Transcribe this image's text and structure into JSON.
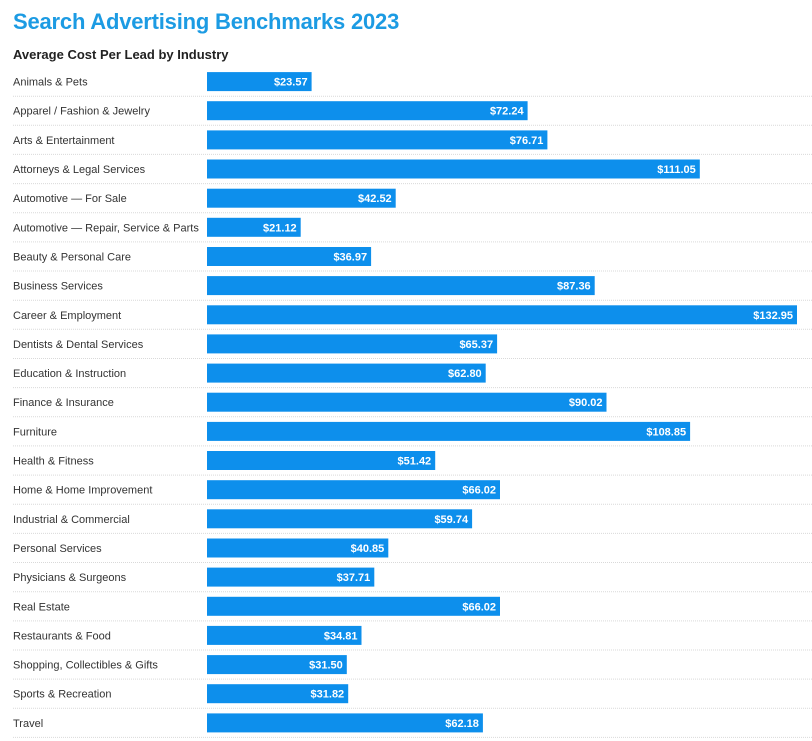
{
  "title": "Search Advertising Benchmarks 2023",
  "subtitle": "Average Cost Per Lead by Industry",
  "colors": {
    "bar": "#0d8fec",
    "title": "#1c9be3",
    "divider": "#d9d9d9"
  },
  "chart_data": {
    "type": "bar",
    "orientation": "horizontal",
    "title": "Search Advertising Benchmarks 2023",
    "subtitle": "Average Cost Per Lead by Industry",
    "xlabel": "",
    "ylabel": "",
    "categories": [
      "Animals & Pets",
      "Apparel / Fashion & Jewelry",
      "Arts & Entertainment",
      "Attorneys & Legal Services",
      "Automotive — For Sale",
      "Automotive — Repair, Service & Parts",
      "Beauty & Personal Care",
      "Business Services",
      "Career & Employment",
      "Dentists & Dental Services",
      "Education & Instruction",
      "Finance & Insurance",
      "Furniture",
      "Health & Fitness",
      "Home & Home Improvement",
      "Industrial & Commercial",
      "Personal Services",
      "Physicians & Surgeons",
      "Real Estate",
      "Restaurants & Food",
      "Shopping, Collectibles & Gifts",
      "Sports & Recreation",
      "Travel"
    ],
    "values": [
      23.57,
      72.24,
      76.71,
      111.05,
      42.52,
      21.12,
      36.97,
      87.36,
      132.95,
      65.37,
      62.8,
      90.02,
      108.85,
      51.42,
      66.02,
      59.74,
      40.85,
      37.71,
      66.02,
      34.81,
      31.5,
      31.82,
      62.18
    ],
    "value_labels": [
      "$23.57",
      "$72.24",
      "$76.71",
      "$111.05",
      "$42.52",
      "$21.12",
      "$36.97",
      "$87.36",
      "$132.95",
      "$65.37",
      "$62.80",
      "$90.02",
      "$108.85",
      "$51.42",
      "$66.02",
      "$59.74",
      "$40.85",
      "$37.71",
      "$66.02",
      "$34.81",
      "$31.50",
      "$31.82",
      "$62.18"
    ],
    "xlim": [
      0,
      132.95
    ],
    "grid": false,
    "legend": "none"
  }
}
